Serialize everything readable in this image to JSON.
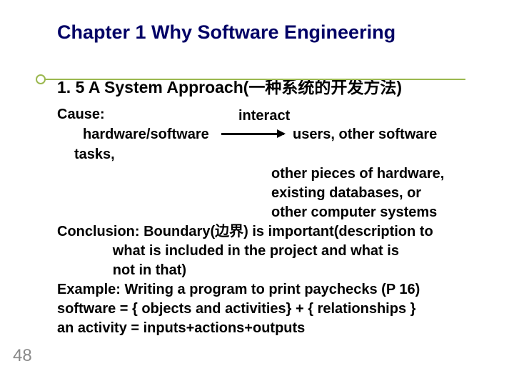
{
  "colors": {
    "title": "#000066",
    "accent": "#9bb84f",
    "text": "#000000",
    "pagenum": "#8a8a8a",
    "bg": "#ffffff"
  },
  "title": "Chapter 1  Why Software Engineering",
  "subtitle": "1. 5 A System Approach(一种系统的开发方法)",
  "cause_label": "Cause:",
  "interact_label": "interact",
  "hw_label": "hardware/software",
  "users_label": "users, other software",
  "tasks_label": "tasks,",
  "right_items": [
    "other pieces of hardware,",
    "existing databases, or",
    "other computer systems"
  ],
  "conclusion_lines": [
    "Conclusion: Boundary(边界) is important(description to",
    "              what is included in the project and what is",
    "              not in that)"
  ],
  "example_line": "Example: Writing a program to print paychecks  (P 16)",
  "software_line": "software = { objects and activities} + { relationships }",
  "activity_line": "an activity = inputs+actions+outputs",
  "page_number": "48"
}
